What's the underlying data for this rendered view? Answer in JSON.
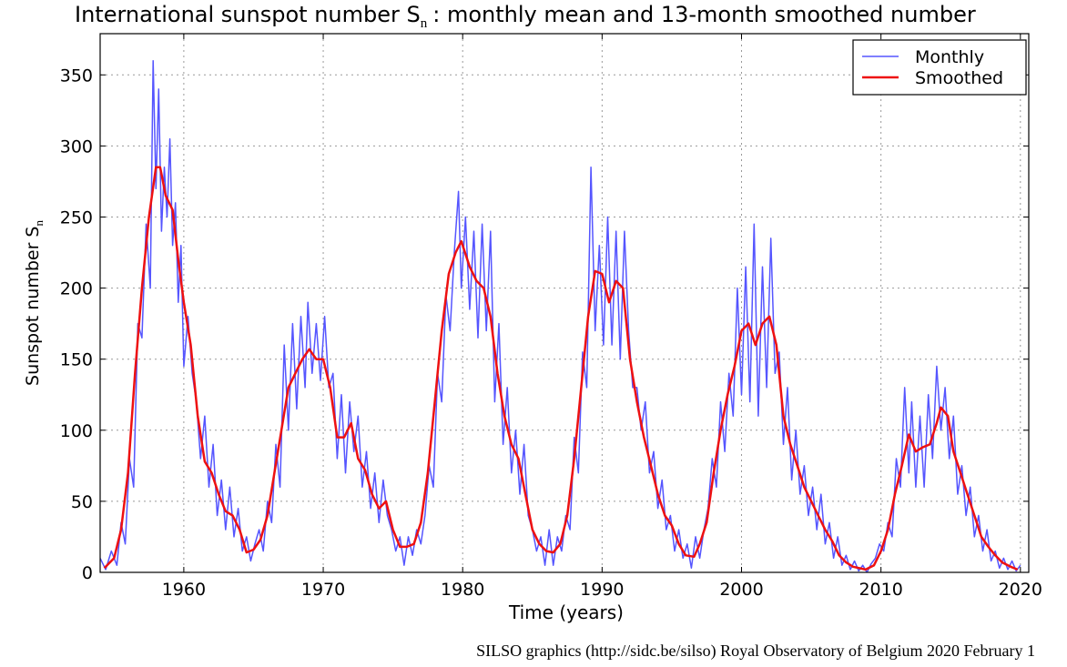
{
  "chart_data": {
    "type": "line",
    "title": "International sunspot number S",
    "title_sub": "n",
    "title_rest": ": monthly mean and 13-month smoothed number",
    "xlabel": "Time (years)",
    "ylabel": "Sunspot number S",
    "ylabel_sub": "n",
    "footer": "SILSO graphics (http://sidc.be/silso)  Royal Observatory of Belgium  2020 February 1",
    "xlim": [
      1954,
      2020.6
    ],
    "ylim": [
      0,
      379
    ],
    "xticks": [
      1960,
      1970,
      1980,
      1990,
      2000,
      2010,
      2020
    ],
    "yticks": [
      0,
      50,
      100,
      150,
      200,
      250,
      300,
      350
    ],
    "grid": true,
    "legend": "upper right",
    "series": [
      {
        "name": "Monthly",
        "color": "#5555ff",
        "x": [
          1954.0,
          1954.4,
          1954.8,
          1955.2,
          1955.5,
          1955.8,
          1956.1,
          1956.4,
          1956.7,
          1957.0,
          1957.3,
          1957.6,
          1957.8,
          1958.0,
          1958.2,
          1958.4,
          1958.6,
          1958.8,
          1959.0,
          1959.2,
          1959.4,
          1959.6,
          1959.8,
          1960.0,
          1960.3,
          1960.6,
          1960.9,
          1961.2,
          1961.5,
          1961.8,
          1962.1,
          1962.4,
          1962.7,
          1963.0,
          1963.3,
          1963.6,
          1963.9,
          1964.2,
          1964.5,
          1964.8,
          1965.1,
          1965.4,
          1965.7,
          1966.0,
          1966.3,
          1966.6,
          1966.9,
          1967.2,
          1967.5,
          1967.8,
          1968.1,
          1968.4,
          1968.7,
          1968.9,
          1969.2,
          1969.5,
          1969.8,
          1970.1,
          1970.4,
          1970.7,
          1971.0,
          1971.3,
          1971.6,
          1971.9,
          1972.2,
          1972.5,
          1972.8,
          1973.1,
          1973.4,
          1973.7,
          1974.0,
          1974.3,
          1974.6,
          1974.9,
          1975.2,
          1975.5,
          1975.8,
          1976.1,
          1976.4,
          1976.7,
          1977.0,
          1977.3,
          1977.6,
          1977.9,
          1978.2,
          1978.5,
          1978.8,
          1979.1,
          1979.4,
          1979.7,
          1979.9,
          1980.2,
          1980.5,
          1980.8,
          1981.1,
          1981.4,
          1981.7,
          1982.0,
          1982.3,
          1982.6,
          1982.9,
          1983.2,
          1983.5,
          1983.8,
          1984.1,
          1984.4,
          1984.7,
          1985.0,
          1985.3,
          1985.6,
          1985.9,
          1986.2,
          1986.5,
          1986.8,
          1987.1,
          1987.4,
          1987.7,
          1988.0,
          1988.3,
          1988.6,
          1988.9,
          1989.2,
          1989.5,
          1989.8,
          1990.1,
          1990.4,
          1990.7,
          1991.0,
          1991.3,
          1991.6,
          1991.9,
          1992.2,
          1992.5,
          1992.8,
          1993.1,
          1993.4,
          1993.7,
          1994.0,
          1994.3,
          1994.6,
          1994.9,
          1995.2,
          1995.5,
          1995.8,
          1996.1,
          1996.4,
          1996.7,
          1997.0,
          1997.3,
          1997.6,
          1997.9,
          1998.2,
          1998.5,
          1998.8,
          1999.1,
          1999.4,
          1999.7,
          2000.0,
          2000.3,
          2000.6,
          2000.9,
          2001.2,
          2001.5,
          2001.8,
          2002.1,
          2002.4,
          2002.7,
          2003.0,
          2003.3,
          2003.6,
          2003.9,
          2004.2,
          2004.5,
          2004.8,
          2005.1,
          2005.4,
          2005.7,
          2006.0,
          2006.3,
          2006.6,
          2006.9,
          2007.2,
          2007.5,
          2007.8,
          2008.1,
          2008.4,
          2008.7,
          2009.0,
          2009.3,
          2009.6,
          2009.9,
          2010.2,
          2010.5,
          2010.8,
          2011.1,
          2011.4,
          2011.7,
          2012.0,
          2012.2,
          2012.5,
          2012.8,
          2013.1,
          2013.4,
          2013.7,
          2014.0,
          2014.3,
          2014.6,
          2014.9,
          2015.2,
          2015.5,
          2015.8,
          2016.1,
          2016.4,
          2016.7,
          2017.0,
          2017.3,
          2017.6,
          2017.9,
          2018.2,
          2018.5,
          2018.8,
          2019.1,
          2019.4,
          2019.7,
          2020.0
        ],
        "values": [
          10,
          2,
          15,
          5,
          35,
          20,
          80,
          60,
          175,
          165,
          245,
          200,
          360,
          270,
          340,
          240,
          285,
          250,
          305,
          230,
          260,
          190,
          230,
          145,
          180,
          140,
          120,
          80,
          110,
          60,
          90,
          40,
          65,
          30,
          60,
          25,
          45,
          15,
          25,
          8,
          20,
          30,
          15,
          50,
          35,
          90,
          60,
          160,
          100,
          175,
          115,
          180,
          130,
          190,
          140,
          175,
          135,
          180,
          130,
          140,
          80,
          125,
          70,
          120,
          85,
          110,
          60,
          85,
          45,
          70,
          35,
          65,
          40,
          30,
          15,
          25,
          5,
          25,
          12,
          30,
          20,
          40,
          75,
          60,
          140,
          120,
          195,
          170,
          225,
          268,
          200,
          250,
          185,
          240,
          165,
          245,
          170,
          240,
          120,
          175,
          90,
          130,
          70,
          100,
          55,
          90,
          40,
          30,
          15,
          25,
          5,
          30,
          5,
          25,
          15,
          40,
          30,
          95,
          70,
          155,
          130,
          285,
          170,
          230,
          160,
          250,
          160,
          240,
          150,
          240,
          170,
          130,
          130,
          100,
          120,
          70,
          85,
          45,
          65,
          30,
          40,
          15,
          30,
          10,
          20,
          3,
          25,
          10,
          30,
          45,
          80,
          60,
          120,
          85,
          140,
          110,
          200,
          125,
          215,
          120,
          245,
          110,
          215,
          130,
          235,
          140,
          155,
          90,
          130,
          65,
          100,
          55,
          75,
          40,
          60,
          30,
          55,
          20,
          35,
          10,
          25,
          5,
          12,
          2,
          8,
          1,
          5,
          0,
          6,
          10,
          20,
          15,
          35,
          25,
          80,
          60,
          130,
          70,
          120,
          60,
          110,
          60,
          125,
          80,
          145,
          100,
          130,
          80,
          110,
          55,
          75,
          40,
          60,
          25,
          40,
          15,
          30,
          8,
          15,
          3,
          10,
          2,
          8,
          1,
          5
        ]
      },
      {
        "name": "Smoothed",
        "color": "#ee1111",
        "x": [
          1954.3,
          1955,
          1955.5,
          1956,
          1956.5,
          1957,
          1957.5,
          1958,
          1958.3,
          1958.7,
          1959.2,
          1959.6,
          1960,
          1960.5,
          1961,
          1961.5,
          1962,
          1962.5,
          1963,
          1963.5,
          1964,
          1964.5,
          1965,
          1965.5,
          1966,
          1966.5,
          1967,
          1967.5,
          1968,
          1968.5,
          1969,
          1969.5,
          1970,
          1970.5,
          1971,
          1971.5,
          1972,
          1972.5,
          1973,
          1973.5,
          1974,
          1974.5,
          1975,
          1975.5,
          1976,
          1976.5,
          1977,
          1977.5,
          1978,
          1978.5,
          1979,
          1979.5,
          1979.9,
          1980.5,
          1981,
          1981.5,
          1982,
          1982.5,
          1983,
          1983.5,
          1984,
          1984.5,
          1985,
          1985.5,
          1986,
          1986.5,
          1987,
          1987.5,
          1988,
          1988.5,
          1989,
          1989.5,
          1990,
          1990.5,
          1991,
          1991.5,
          1992,
          1992.5,
          1993,
          1993.5,
          1994,
          1994.5,
          1995,
          1995.5,
          1996,
          1996.6,
          1997,
          1997.5,
          1998,
          1998.5,
          1999,
          1999.5,
          2000,
          2000.5,
          2001,
          2001.5,
          2002,
          2002.5,
          2003,
          2003.5,
          2004,
          2004.5,
          2005,
          2005.5,
          2006,
          2006.5,
          2007,
          2007.5,
          2008,
          2008.9,
          2009.5,
          2010,
          2010.5,
          2011,
          2011.5,
          2012,
          2012.5,
          2013,
          2013.5,
          2014,
          2014.3,
          2014.8,
          2015.2,
          2015.7,
          2016.2,
          2016.7,
          2017.2,
          2017.7,
          2018.2,
          2018.7,
          2019.3,
          2019.8
        ],
        "values": [
          3,
          10,
          30,
          70,
          140,
          200,
          250,
          285,
          285,
          265,
          255,
          220,
          190,
          160,
          110,
          78,
          70,
          55,
          43,
          40,
          30,
          14,
          16,
          23,
          40,
          70,
          100,
          130,
          140,
          150,
          157,
          150,
          150,
          130,
          95,
          95,
          105,
          80,
          72,
          55,
          45,
          50,
          30,
          18,
          18,
          20,
          35,
          70,
          120,
          170,
          210,
          225,
          233,
          215,
          205,
          200,
          180,
          140,
          110,
          90,
          80,
          55,
          30,
          20,
          15,
          14,
          20,
          40,
          80,
          130,
          180,
          212,
          210,
          190,
          205,
          200,
          150,
          120,
          95,
          75,
          55,
          40,
          33,
          20,
          12,
          11,
          20,
          35,
          70,
          100,
          125,
          145,
          170,
          175,
          160,
          175,
          180,
          160,
          110,
          90,
          75,
          60,
          50,
          40,
          30,
          22,
          12,
          7,
          4,
          2,
          5,
          15,
          30,
          55,
          75,
          97,
          85,
          88,
          90,
          105,
          116,
          110,
          85,
          70,
          55,
          40,
          25,
          18,
          12,
          7,
          4,
          2
        ]
      }
    ]
  }
}
